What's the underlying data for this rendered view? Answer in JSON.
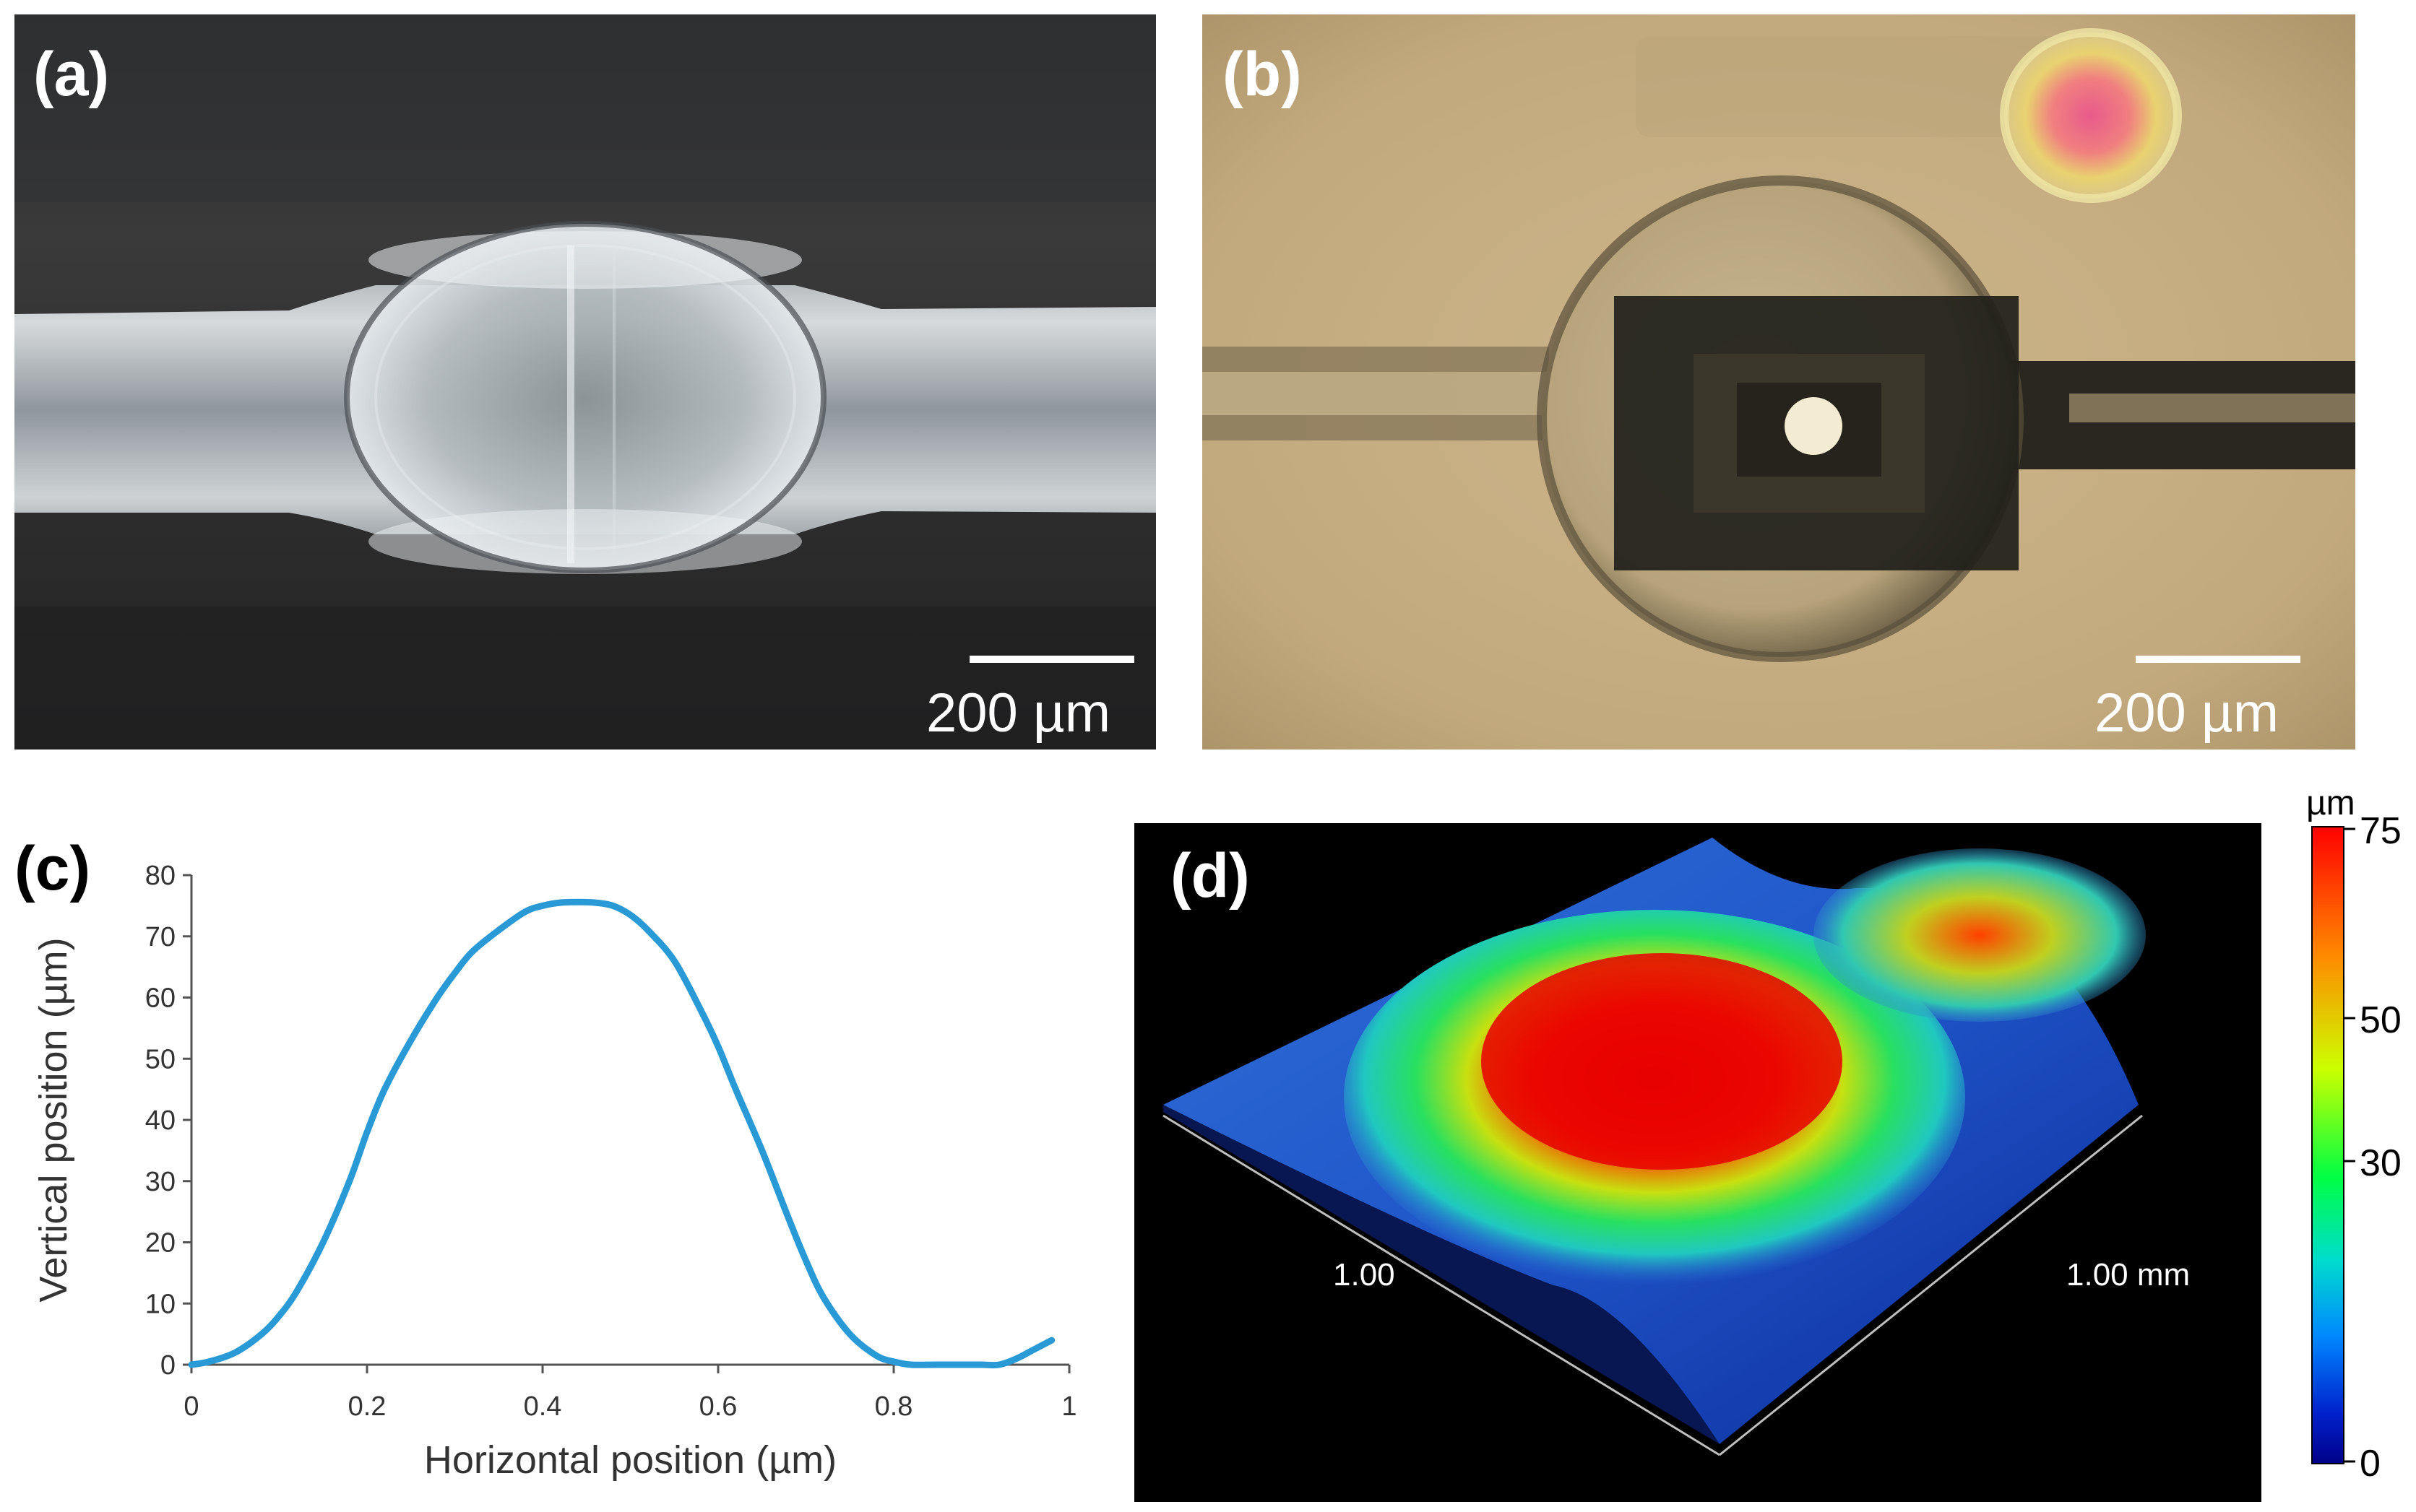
{
  "panels": {
    "a": {
      "label": "(a)",
      "scale_label": "200 µm"
    },
    "b": {
      "label": "(b)",
      "scale_label": "200 µm"
    },
    "c": {
      "label": "(c)"
    },
    "d": {
      "label": "(d)",
      "axis_label_left": "1.00",
      "axis_label_right": "1.00 mm"
    }
  },
  "chart_data": {
    "type": "line",
    "xlabel": "Horizontal position (µm)",
    "ylabel": "Vertical position (µm)",
    "xlim": [
      0,
      1
    ],
    "ylim": [
      0,
      80
    ],
    "xticks": [
      "0",
      "0.2",
      "0.4",
      "0.6",
      "0.8",
      "1"
    ],
    "yticks": [
      "0",
      "10",
      "20",
      "30",
      "40",
      "50",
      "60",
      "70",
      "80"
    ],
    "grid": false,
    "color": "#2a9ad6",
    "series": [
      {
        "x": [
          0,
          0.02,
          0.05,
          0.08,
          0.1,
          0.12,
          0.15,
          0.18,
          0.2,
          0.22,
          0.25,
          0.28,
          0.3,
          0.32,
          0.35,
          0.38,
          0.4,
          0.42,
          0.44,
          0.46,
          0.48,
          0.5,
          0.52,
          0.55,
          0.58,
          0.6,
          0.62,
          0.65,
          0.68,
          0.7,
          0.72,
          0.75,
          0.78,
          0.8,
          0.82,
          0.85,
          0.88,
          0.9,
          0.92,
          0.94,
          0.96,
          0.98
        ],
        "y": [
          0,
          0.5,
          2,
          5,
          8,
          12,
          20,
          30,
          38,
          45,
          53,
          60,
          64,
          67.5,
          71,
          74,
          75,
          75.5,
          75.6,
          75.5,
          75,
          73.5,
          71,
          66,
          58,
          52,
          45,
          35,
          24,
          17,
          11,
          5,
          1.5,
          0.5,
          0,
          0,
          0,
          0,
          0,
          1,
          2.5,
          4
        ]
      }
    ]
  },
  "colorbar": {
    "unit": "µm",
    "ticks": [
      "75",
      "50",
      "30",
      "0"
    ],
    "colors": [
      "#ff0000",
      "#ff8800",
      "#ccff00",
      "#00ff44",
      "#00ddcc",
      "#0088ff",
      "#0022cc",
      "#000088"
    ]
  }
}
